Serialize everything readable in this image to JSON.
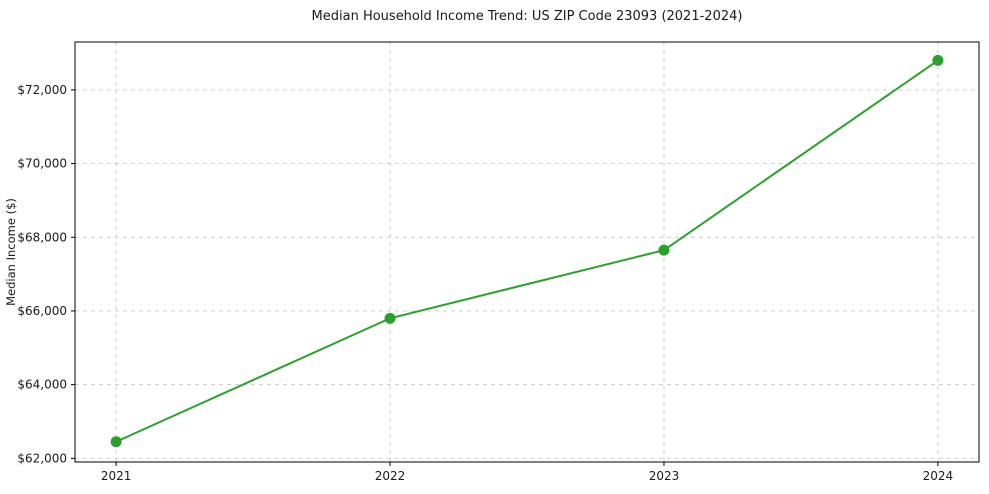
{
  "chart_data": {
    "type": "line",
    "title": "Median Household Income Trend: US ZIP Code 23093 (2021-2024)",
    "xlabel": "",
    "ylabel": "Median Income ($)",
    "x": [
      2021,
      2022,
      2023,
      2024
    ],
    "values": [
      62450,
      65800,
      67650,
      72800
    ],
    "series": [
      {
        "name": "Median Household Income",
        "values": [
          62450,
          65800,
          67650,
          72800
        ]
      }
    ],
    "x_tick_labels": [
      "2021",
      "2022",
      "2023",
      "2024"
    ],
    "y_ticks": [
      62000,
      64000,
      66000,
      68000,
      70000,
      72000
    ],
    "y_tick_labels": [
      "$62,000",
      "$64,000",
      "$66,000",
      "$68,000",
      "$70,000",
      "$72,000"
    ],
    "xlim": [
      2020.85,
      2024.15
    ],
    "ylim": [
      61900,
      73300
    ],
    "grid": true,
    "grid_style": "dashed",
    "legend_position": "none",
    "line_color": "#2ca02c",
    "marker_color": "#2ca02c",
    "grid_color": "#c8c8c8",
    "spine_color": "#000000",
    "background": "#ffffff"
  }
}
